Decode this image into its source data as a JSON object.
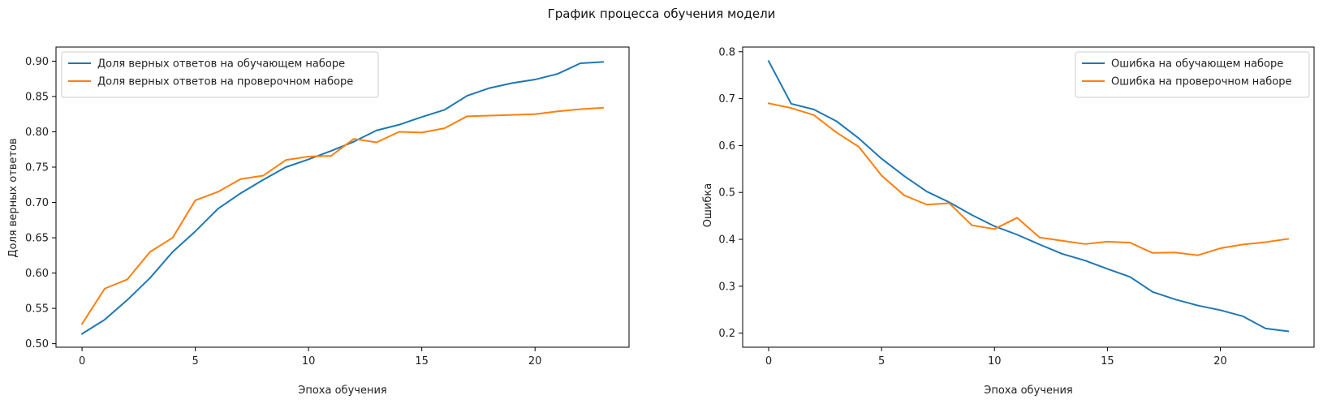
{
  "figure_title": "График процесса обучения модели",
  "colors": {
    "series1": "#1f77b4",
    "series2": "#ff7f0e"
  },
  "chart_data": [
    {
      "type": "line",
      "title": "",
      "xlabel": "Эпоха обучения",
      "ylabel": "Доля верных ответов",
      "xlim": [
        -1.15,
        24.15
      ],
      "ylim": [
        0.495,
        0.92
      ],
      "xticks": [
        0,
        5,
        10,
        15,
        20
      ],
      "xtick_labels": [
        "0",
        "5",
        "10",
        "15",
        "20"
      ],
      "yticks": [
        0.5,
        0.55,
        0.6,
        0.65,
        0.7,
        0.75,
        0.8,
        0.85,
        0.9
      ],
      "ytick_labels": [
        "0.50",
        "0.55",
        "0.60",
        "0.65",
        "0.70",
        "0.75",
        "0.80",
        "0.85",
        "0.90"
      ],
      "grid": false,
      "legend_position": "top-left",
      "x": [
        0,
        1,
        2,
        3,
        4,
        5,
        6,
        7,
        8,
        9,
        10,
        11,
        12,
        13,
        14,
        15,
        16,
        17,
        18,
        19,
        20,
        21,
        22,
        23
      ],
      "series": [
        {
          "name": "Доля верных ответов на обучающем наборе",
          "color": "#1f77b4",
          "values": [
            0.514,
            0.534,
            0.562,
            0.593,
            0.63,
            0.659,
            0.691,
            0.713,
            0.732,
            0.75,
            0.761,
            0.773,
            0.786,
            0.802,
            0.81,
            0.821,
            0.831,
            0.851,
            0.862,
            0.869,
            0.874,
            0.882,
            0.897,
            0.899
          ]
        },
        {
          "name": "Доля верных ответов на проверочном наборе",
          "color": "#ff7f0e",
          "values": [
            0.528,
            0.578,
            0.591,
            0.63,
            0.65,
            0.703,
            0.715,
            0.733,
            0.738,
            0.76,
            0.765,
            0.766,
            0.79,
            0.785,
            0.8,
            0.799,
            0.805,
            0.822,
            0.823,
            0.824,
            0.825,
            0.829,
            0.832,
            0.834
          ]
        }
      ]
    },
    {
      "type": "line",
      "title": "",
      "xlabel": "Эпоха обучения",
      "ylabel": "Ошибка",
      "xlim": [
        -1.15,
        24.15
      ],
      "ylim": [
        0.17,
        0.81
      ],
      "xticks": [
        0,
        5,
        10,
        15,
        20
      ],
      "xtick_labels": [
        "0",
        "5",
        "10",
        "15",
        "20"
      ],
      "yticks": [
        0.2,
        0.3,
        0.4,
        0.5,
        0.6,
        0.7,
        0.8
      ],
      "ytick_labels": [
        "0.2",
        "0.3",
        "0.4",
        "0.5",
        "0.6",
        "0.7",
        "0.8"
      ],
      "grid": false,
      "legend_position": "top-right",
      "x": [
        0,
        1,
        2,
        3,
        4,
        5,
        6,
        7,
        8,
        9,
        10,
        11,
        12,
        13,
        14,
        15,
        16,
        17,
        18,
        19,
        20,
        21,
        22,
        23
      ],
      "series": [
        {
          "name": "Ошибка на обучающем наборе",
          "color": "#1f77b4",
          "values": [
            0.78,
            0.689,
            0.677,
            0.652,
            0.615,
            0.572,
            0.535,
            0.502,
            0.479,
            0.452,
            0.428,
            0.41,
            0.389,
            0.369,
            0.355,
            0.337,
            0.32,
            0.288,
            0.272,
            0.259,
            0.249,
            0.236,
            0.21,
            0.204
          ]
        },
        {
          "name": "Ошибка на проверочном наборе",
          "color": "#ff7f0e",
          "values": [
            0.69,
            0.68,
            0.665,
            0.628,
            0.597,
            0.536,
            0.494,
            0.474,
            0.477,
            0.43,
            0.422,
            0.446,
            0.404,
            0.397,
            0.39,
            0.395,
            0.393,
            0.371,
            0.372,
            0.366,
            0.381,
            0.389,
            0.394,
            0.401
          ]
        }
      ]
    }
  ]
}
